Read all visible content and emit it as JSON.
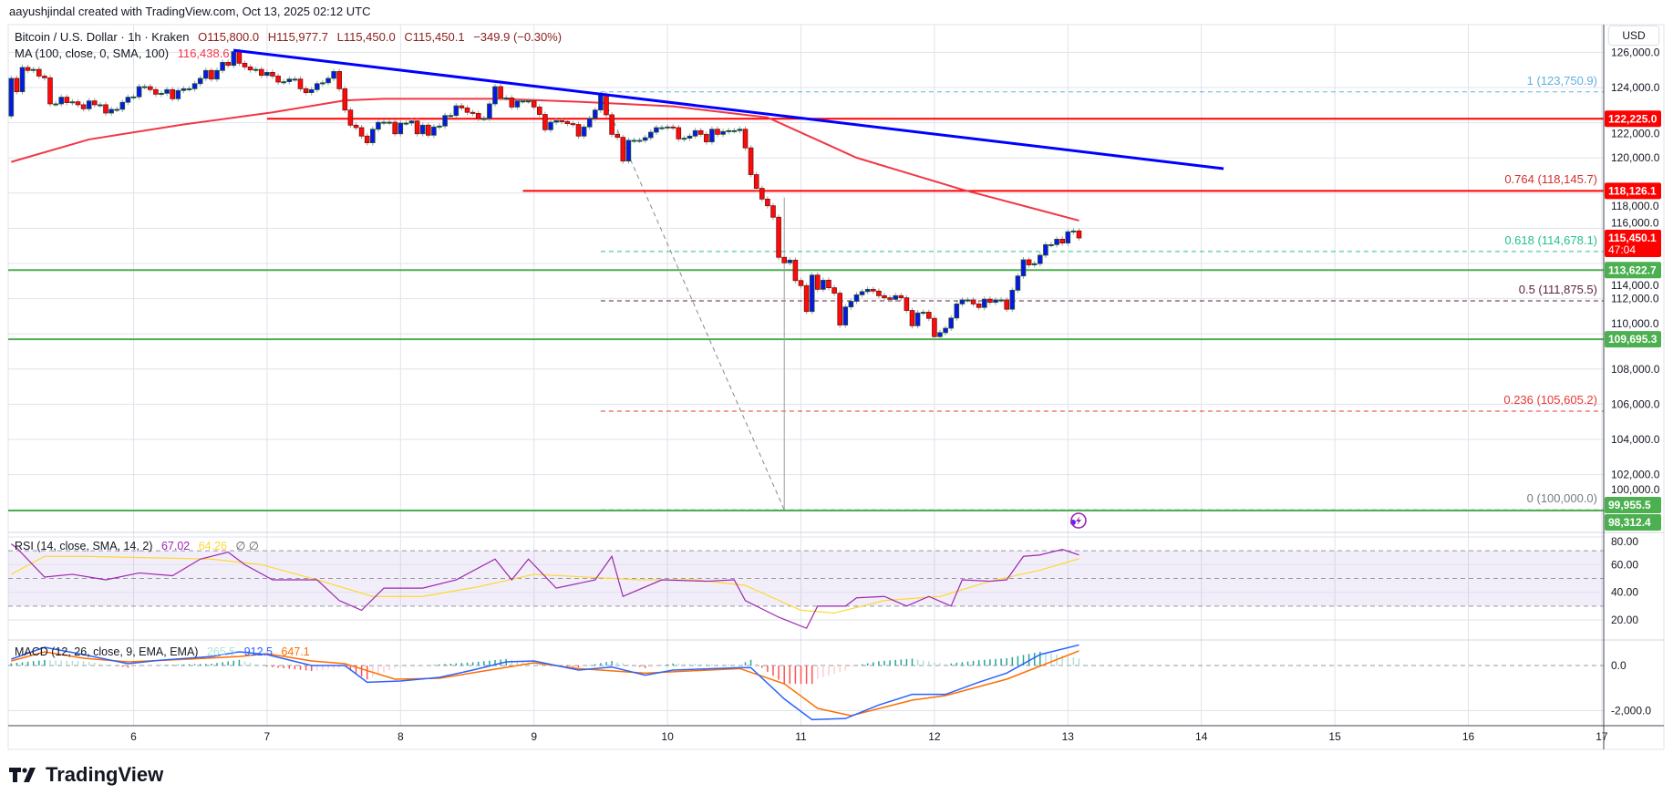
{
  "attribution": "aayushjindal created with TradingView.com, Oct 13, 2025 02:12 UTC",
  "legend": {
    "symbol": "Bitcoin / U.S. Dollar · 1h · Kraken",
    "open": "O115,800.0",
    "high": "H115,977.7",
    "low": "L115,450.0",
    "close": "C115,450.1",
    "change": "−349.9 (−0.30%)",
    "ma_label": "MA (100, close, 0, SMA, 100)",
    "ma_value": "116,438.6"
  },
  "rsi_legend": {
    "label": "RSI (14, close, SMA, 14, 2)",
    "rsi": "67.02",
    "sma": "64.26",
    "extra": "∅  ∅"
  },
  "macd_legend": {
    "label": "MACD (12, 26, close, 9, EMA, EMA)",
    "histogram": "265.5",
    "macd": "912.5",
    "signal": "647.1"
  },
  "currency": "USD",
  "brand": "TradingView",
  "icons": {
    "alert": "lightning-alert-icon",
    "logo": "tradingview-logo-icon"
  },
  "colors": {
    "up": "#0a14f0",
    "up_border": "#1b5e20",
    "down": "#ff0a0a",
    "down_border": "#7b1010",
    "ma": "#f23645",
    "trendline": "#0000ff",
    "resistance": "#ff0000",
    "support": "#4caf50",
    "rsi": "#9c27b0",
    "rsi_sma": "#fdd835",
    "macd": "#2962ff",
    "signal": "#ff6d00",
    "hist_up": "#26a69a",
    "hist_down": "#ff5252"
  },
  "chart_data": {
    "type": "candlestick",
    "x_axis": {
      "ticks": [
        "6",
        "7",
        "8",
        "9",
        "10",
        "11",
        "12",
        "13",
        "14",
        "15",
        "16",
        "17"
      ]
    },
    "price_axis": {
      "ticks": [
        "126,000.0",
        "124,000.0",
        "122,000.0",
        "120,000.0",
        "118,000.0",
        "116,000.0",
        "114,000.0",
        "112,000.0",
        "110,000.0",
        "108,000.0",
        "106,000.0",
        "104,000.0",
        "102,000.0",
        "100,000.0"
      ],
      "grid": true
    },
    "candles": {
      "interval": "1h",
      "first": "2025-10-05 02:00",
      "first_open": 122380,
      "close": [
        124520,
        123760,
        125140,
        124970,
        125030,
        124650,
        124550,
        123070,
        123070,
        123450,
        123140,
        123190,
        123020,
        122790,
        123240,
        123020,
        123020,
        122550,
        122760,
        122760,
        123160,
        123450,
        123470,
        124050,
        124050,
        123880,
        123620,
        123670,
        123880,
        123360,
        123830,
        123930,
        123930,
        124220,
        124520,
        124970,
        124480,
        124970,
        125430,
        125260,
        126040,
        125380,
        125170,
        125000,
        125030,
        124690,
        124860,
        124650,
        124310,
        124330,
        124480,
        124480,
        123930,
        123710,
        123880,
        124220,
        124270,
        124520,
        124910,
        123930,
        122720,
        121860,
        121720,
        121240,
        120860,
        121630,
        122020,
        122030,
        122030,
        121370,
        121980,
        121980,
        122100,
        121370,
        121860,
        121290,
        121760,
        121810,
        122410,
        122410,
        122960,
        122840,
        122590,
        122530,
        122240,
        122240,
        123070,
        124050,
        123410,
        123410,
        122890,
        123240,
        123240,
        123240,
        122890,
        122470,
        121600,
        122030,
        122120,
        122070,
        121950,
        121900,
        121240,
        121760,
        122240,
        122720,
        123590,
        122450,
        121340,
        121170,
        119820,
        121000,
        121000,
        121000,
        121150,
        121460,
        121720,
        121720,
        121760,
        121720,
        121080,
        121120,
        121240,
        121550,
        121340,
        120910,
        121630,
        121340,
        121500,
        121550,
        121550,
        121630,
        120570,
        119050,
        118270,
        117660,
        117280,
        116630,
        114350,
        114040,
        114190,
        113030,
        112740,
        111270,
        113340,
        112530,
        113050,
        112620,
        112310,
        110500,
        111530,
        111850,
        112220,
        112400,
        112530,
        112430,
        112170,
        112050,
        111960,
        112170,
        112050,
        111330,
        110460,
        111190,
        111230,
        110880,
        109840,
        110070,
        110320,
        110900,
        111700,
        111930,
        111930,
        111700,
        111500,
        111970,
        111790,
        111930,
        111930,
        111400,
        112480,
        113290,
        114210,
        113920,
        113990,
        114470,
        115070,
        115070,
        115380,
        115160,
        115800,
        115850,
        115450.1
      ],
      "wick_overrides": [
        {
          "time": "2025-10-10 21:00",
          "high": 117750,
          "low": 100000
        }
      ]
    },
    "ma100": [
      [
        "2025-10-05 02:00",
        119770
      ],
      [
        "2025-10-05 16:00",
        121050
      ],
      [
        "2025-10-06 09:00",
        121900
      ],
      [
        "2025-10-07 01:00",
        122590
      ],
      [
        "2025-10-07 14:00",
        123270
      ],
      [
        "2025-10-07 21:00",
        123360
      ],
      [
        "2025-10-08 18:00",
        123360
      ],
      [
        "2025-10-09 08:00",
        123190
      ],
      [
        "2025-10-10 01:00",
        122930
      ],
      [
        "2025-10-10 18:00",
        122300
      ],
      [
        "2025-10-11 10:00",
        120010
      ],
      [
        "2025-10-12 05:00",
        118200
      ],
      [
        "2025-10-13 02:00",
        116440
      ]
    ],
    "trendline": [
      [
        "2025-10-06 18:00",
        126120
      ],
      [
        "2025-10-14 04:00",
        119390
      ]
    ],
    "horizontal_lines": [
      {
        "price": 122225.0,
        "from": "2025-10-07 00:00",
        "kind": "resistance"
      },
      {
        "price": 118126.1,
        "from": "2025-10-08 22:00",
        "kind": "resistance"
      },
      {
        "price": 113622.7,
        "from": "2025-10-05 00:00",
        "kind": "support"
      },
      {
        "price": 109695.3,
        "from": "2025-10-05 00:00",
        "kind": "support"
      },
      {
        "price": 99955.5,
        "from": "2025-10-05 00:00",
        "kind": "support"
      }
    ],
    "fibonacci": {
      "from": "2025-10-09 12:00",
      "diagonal": [
        [
          "2025-10-09 12:00",
          123750.9
        ],
        [
          "2025-10-10 21:00",
          100000.0
        ]
      ],
      "levels": [
        {
          "label": "1 (123,750.9)",
          "price": 123750.9,
          "color": "#5fb0e0"
        },
        {
          "label": "0.764 (118,145.7)",
          "price": 118145.7,
          "color": "#d32f2f"
        },
        {
          "label": "0.618 (114,678.1)",
          "price": 114678.1,
          "color": "#22c08e"
        },
        {
          "label": "0.5 (111,875.5)",
          "price": 111875.5,
          "color": "#5d1f3a"
        },
        {
          "label": "0.236 (105,605.2)",
          "price": 105605.2,
          "color": "#e53935"
        },
        {
          "label": "0 (100,000.0)",
          "price": 100000.0,
          "color": "#787b86"
        }
      ]
    },
    "price_labels": [
      {
        "text": "122,225.0",
        "color": "#ff0000"
      },
      {
        "text": "118,126.1",
        "color": "#ff0000"
      },
      {
        "text": "115,450.1",
        "sub": "47:04",
        "color": "#ff0000"
      },
      {
        "text": "113,622.7",
        "color": "#4caf50"
      },
      {
        "text": "109,695.3",
        "color": "#4caf50"
      },
      {
        "text": "99,955.5",
        "color": "#4caf50"
      },
      {
        "text": "98,312.4",
        "color": "#4caf50"
      }
    ],
    "rsi": {
      "axis_ticks": [
        "80.00",
        "60.00",
        "40.00",
        "20.00"
      ],
      "band": [
        30,
        70
      ],
      "values": [
        [
          "2025-10-05 02:00",
          75
        ],
        [
          "2025-10-05 03:00",
          72
        ],
        [
          "2025-10-05 08:00",
          51
        ],
        [
          "2025-10-05 13:00",
          53
        ],
        [
          "2025-10-05 19:00",
          49
        ],
        [
          "2025-10-06 01:00",
          54
        ],
        [
          "2025-10-06 07:00",
          52
        ],
        [
          "2025-10-06 12:00",
          64
        ],
        [
          "2025-10-06 17:00",
          69
        ],
        [
          "2025-10-06 20:00",
          60
        ],
        [
          "2025-10-07 01:00",
          49
        ],
        [
          "2025-10-07 09:00",
          49
        ],
        [
          "2025-10-07 13:00",
          34
        ],
        [
          "2025-10-07 17:00",
          27
        ],
        [
          "2025-10-07 21:00",
          43
        ],
        [
          "2025-10-08 04:00",
          43
        ],
        [
          "2025-10-08 10:00",
          49
        ],
        [
          "2025-10-08 17:00",
          64
        ],
        [
          "2025-10-08 20:00",
          49
        ],
        [
          "2025-10-08 23:00",
          64
        ],
        [
          "2025-10-09 04:00",
          43
        ],
        [
          "2025-10-09 11:00",
          49
        ],
        [
          "2025-10-09 14:00",
          66
        ],
        [
          "2025-10-09 16:00",
          37
        ],
        [
          "2025-10-09 23:00",
          49
        ],
        [
          "2025-10-10 07:00",
          48
        ],
        [
          "2025-10-10 12:00",
          49
        ],
        [
          "2025-10-10 14:00",
          34
        ],
        [
          "2025-10-10 20:00",
          22
        ],
        [
          "2025-10-11 01:00",
          14
        ],
        [
          "2025-10-11 03:00",
          30
        ],
        [
          "2025-10-11 08:00",
          30
        ],
        [
          "2025-10-11 10:00",
          36
        ],
        [
          "2025-10-11 15:00",
          37
        ],
        [
          "2025-10-11 19:00",
          30
        ],
        [
          "2025-10-11 23:00",
          37
        ],
        [
          "2025-10-12 03:00",
          30
        ],
        [
          "2025-10-12 05:00",
          49
        ],
        [
          "2025-10-12 10:00",
          48
        ],
        [
          "2025-10-12 13:00",
          49
        ],
        [
          "2025-10-12 16:00",
          66
        ],
        [
          "2025-10-12 19:00",
          67
        ],
        [
          "2025-10-12 23:00",
          71
        ],
        [
          "2025-10-13 02:00",
          67.02
        ]
      ],
      "sma": [
        [
          "2025-10-05 02:00",
          53
        ],
        [
          "2025-10-05 08:00",
          66
        ],
        [
          "2025-10-05 15:00",
          66
        ],
        [
          "2025-10-06 14:00",
          64
        ],
        [
          "2025-10-06 23:00",
          60
        ],
        [
          "2025-10-07 09:00",
          49
        ],
        [
          "2025-10-07 19:00",
          37
        ],
        [
          "2025-10-08 04:00",
          37
        ],
        [
          "2025-10-08 14:00",
          44
        ],
        [
          "2025-10-09 00:00",
          53
        ],
        [
          "2025-10-09 19:00",
          49
        ],
        [
          "2025-10-10 05:00",
          49
        ],
        [
          "2025-10-10 14:00",
          45
        ],
        [
          "2025-10-11 00:00",
          27
        ],
        [
          "2025-10-11 06:00",
          25
        ],
        [
          "2025-10-11 15:00",
          34
        ],
        [
          "2025-10-12 01:00",
          37
        ],
        [
          "2025-10-12 10:00",
          48
        ],
        [
          "2025-10-12 19:00",
          56
        ],
        [
          "2025-10-13 02:00",
          64.26
        ]
      ]
    },
    "macd": {
      "axis_ticks": [
        "0.0",
        "-2,000.0"
      ],
      "macd": [
        [
          "2025-10-05 02:00",
          283
        ],
        [
          "2025-10-05 08:00",
          808
        ],
        [
          "2025-10-05 15:00",
          485
        ],
        [
          "2025-10-05 23:00",
          80
        ],
        [
          "2025-10-06 05:00",
          240
        ],
        [
          "2025-10-06 14:00",
          400
        ],
        [
          "2025-10-06 19:00",
          606
        ],
        [
          "2025-10-07 00:00",
          485
        ],
        [
          "2025-10-07 08:00",
          0
        ],
        [
          "2025-10-07 14:00",
          0
        ],
        [
          "2025-10-07 18:00",
          -740
        ],
        [
          "2025-10-08 00:00",
          -687
        ],
        [
          "2025-10-08 07:00",
          -525
        ],
        [
          "2025-10-08 13:00",
          -202
        ],
        [
          "2025-10-08 19:00",
          161
        ],
        [
          "2025-10-09 00:00",
          202
        ],
        [
          "2025-10-09 08:00",
          -202
        ],
        [
          "2025-10-09 14:00",
          -67
        ],
        [
          "2025-10-09 20:00",
          -430
        ],
        [
          "2025-10-10 01:00",
          -202
        ],
        [
          "2025-10-10 13:00",
          -94
        ],
        [
          "2025-10-10 15:00",
          -94
        ],
        [
          "2025-10-10 21:00",
          -1480
        ],
        [
          "2025-10-11 02:00",
          -2400
        ],
        [
          "2025-10-11 08:00",
          -2350
        ],
        [
          "2025-10-11 14:00",
          -1750
        ],
        [
          "2025-10-11 20:00",
          -1280
        ],
        [
          "2025-10-12 02:00",
          -1280
        ],
        [
          "2025-10-12 08:00",
          -740
        ],
        [
          "2025-10-12 13:00",
          -337
        ],
        [
          "2025-10-12 19:00",
          485
        ],
        [
          "2025-10-13 02:00",
          912.5
        ]
      ],
      "signal": [
        [
          "2025-10-05 02:00",
          202
        ],
        [
          "2025-10-05 08:00",
          606
        ],
        [
          "2025-10-05 15:00",
          323
        ],
        [
          "2025-10-05 23:00",
          161
        ],
        [
          "2025-10-06 10:00",
          283
        ],
        [
          "2025-10-06 19:00",
          400
        ],
        [
          "2025-10-07 00:00",
          525
        ],
        [
          "2025-10-07 08:00",
          202
        ],
        [
          "2025-10-07 14:00",
          80
        ],
        [
          "2025-10-07 23:00",
          -606
        ],
        [
          "2025-10-08 07:00",
          -566
        ],
        [
          "2025-10-08 14:00",
          -283
        ],
        [
          "2025-10-09 00:00",
          121
        ],
        [
          "2025-10-09 08:00",
          -135
        ],
        [
          "2025-10-09 20:00",
          -337
        ],
        [
          "2025-10-10 13:00",
          -135
        ],
        [
          "2025-10-10 21:00",
          -808
        ],
        [
          "2025-10-11 03:00",
          -1900
        ],
        [
          "2025-10-11 09:00",
          -2220
        ],
        [
          "2025-10-11 20:00",
          -1535
        ],
        [
          "2025-10-12 02:00",
          -1333
        ],
        [
          "2025-10-12 13:00",
          -606
        ],
        [
          "2025-10-13 02:00",
          647.1
        ]
      ]
    }
  }
}
